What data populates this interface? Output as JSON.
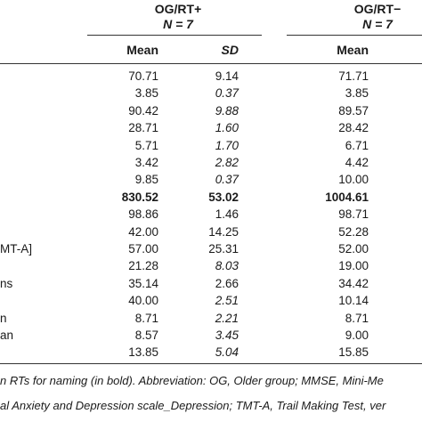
{
  "groups": [
    {
      "title": "OG/RT+",
      "n": "N = 7"
    },
    {
      "title": "OG/RT−",
      "n": "N = 7"
    }
  ],
  "columns": {
    "mean1": "Mean",
    "sd1": "SD",
    "mean2": "Mean"
  },
  "rows": [
    {
      "label": "",
      "mean1": "70.71",
      "sd1": "9.14",
      "sd1_italic": false,
      "mean2": "71.71",
      "bold": false
    },
    {
      "label": "",
      "mean1": "3.85",
      "sd1": "0.37",
      "sd1_italic": true,
      "mean2": "3.85",
      "bold": false
    },
    {
      "label": "",
      "mean1": "90.42",
      "sd1": "9.88",
      "sd1_italic": true,
      "mean2": "89.57",
      "bold": false
    },
    {
      "label": "",
      "mean1": "28.71",
      "sd1": "1.60",
      "sd1_italic": true,
      "mean2": "28.42",
      "bold": false
    },
    {
      "label": "",
      "mean1": "5.71",
      "sd1": "1.70",
      "sd1_italic": true,
      "mean2": "6.71",
      "bold": false
    },
    {
      "label": "",
      "mean1": "3.42",
      "sd1": "2.82",
      "sd1_italic": true,
      "mean2": "4.42",
      "bold": false
    },
    {
      "label": "",
      "mean1": "9.85",
      "sd1": "0.37",
      "sd1_italic": true,
      "mean2": "10.00",
      "bold": false
    },
    {
      "label": "",
      "mean1": "830.52",
      "sd1": "53.02",
      "sd1_italic": false,
      "mean2": "1004.61",
      "bold": true
    },
    {
      "label": "",
      "mean1": "98.86",
      "sd1": "1.46",
      "sd1_italic": false,
      "mean2": "98.71",
      "bold": false
    },
    {
      "label": "",
      "mean1": "42.00",
      "sd1": "14.25",
      "sd1_italic": false,
      "mean2": "52.28",
      "bold": false
    },
    {
      "label": "MT-A]",
      "mean1": "57.00",
      "sd1": "25.31",
      "sd1_italic": false,
      "mean2": "52.00",
      "bold": false
    },
    {
      "label": "",
      "mean1": "21.28",
      "sd1": "8.03",
      "sd1_italic": true,
      "mean2": "19.00",
      "bold": false
    },
    {
      "label": "ns",
      "mean1": "35.14",
      "sd1": "2.66",
      "sd1_italic": false,
      "mean2": "34.42",
      "bold": false
    },
    {
      "label": "",
      "mean1": "40.00",
      "sd1": "2.51",
      "sd1_italic": true,
      "mean2": "10.14",
      "bold": false
    },
    {
      "label": "n",
      "mean1": "8.71",
      "sd1": "2.21",
      "sd1_italic": true,
      "mean2": "8.71",
      "bold": false
    },
    {
      "label": "an",
      "mean1": "8.57",
      "sd1": "3.45",
      "sd1_italic": true,
      "mean2": "9.00",
      "bold": false
    },
    {
      "label": "",
      "mean1": "13.85",
      "sd1": "5.04",
      "sd1_italic": true,
      "mean2": "15.85",
      "bold": false
    }
  ],
  "footnotes": [
    "n RTs for naming (in bold). Abbreviation: OG, Older group; MMSE, Mini-Me",
    "al Anxiety and Depression scale_Depression; TMT-A, Trail Making Test, ver"
  ]
}
